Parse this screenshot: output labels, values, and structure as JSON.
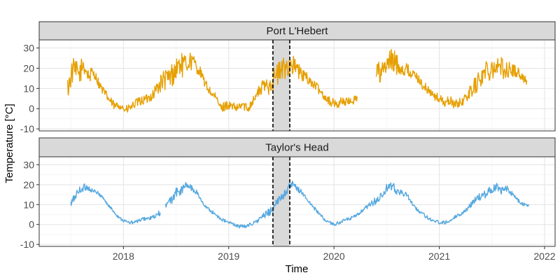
{
  "chart_data": {
    "type": "line",
    "facets": [
      {
        "name": "Port L'Hebert",
        "color": "#E69F00",
        "ylim": [
          -11,
          34
        ],
        "yticks": [
          -10,
          0,
          10,
          20,
          30
        ],
        "segments": [
          {
            "x": [
              2017.47,
              2017.52,
              2017.58,
              2017.62,
              2017.67,
              2017.72,
              2017.77,
              2017.83,
              2017.87,
              2017.92,
              2017.97,
              2018.02,
              2018.08,
              2018.13,
              2018.18,
              2018.23,
              2018.28,
              2018.33,
              2018.38,
              2018.43,
              2018.48,
              2018.53,
              2018.58,
              2018.63,
              2018.68,
              2018.73,
              2018.78,
              2018.83,
              2018.88,
              2018.93,
              2018.98,
              2019.03,
              2019.08,
              2019.13,
              2019.18,
              2019.23,
              2019.28,
              2019.33,
              2019.38,
              2019.43,
              2019.48,
              2019.53,
              2019.58,
              2019.63,
              2019.68,
              2019.73,
              2019.78,
              2019.83,
              2019.88,
              2019.93,
              2019.98,
              2020.03,
              2020.08,
              2020.13,
              2020.18,
              2020.22
            ],
            "y": [
              10,
              19,
              17,
              22,
              16,
              18,
              12,
              7,
              4,
              1,
              2,
              -1,
              1,
              3,
              4,
              5,
              7,
              11,
              14,
              15,
              18,
              22,
              21,
              24,
              22,
              18,
              12,
              8,
              5,
              0,
              2,
              1,
              0,
              2,
              0,
              4,
              8,
              11,
              12,
              15,
              18,
              20,
              22,
              21,
              17,
              16,
              13,
              11,
              8,
              5,
              3,
              2,
              4,
              3,
              4,
              6
            ]
          },
          {
            "x": [
              2020.4,
              2020.45,
              2020.5,
              2020.55,
              2020.6,
              2020.65,
              2020.7,
              2020.75,
              2020.8,
              2020.85,
              2020.9,
              2020.95,
              2021.0,
              2021.05,
              2021.1,
              2021.15,
              2021.2,
              2021.25,
              2021.3,
              2021.35,
              2021.4,
              2021.45,
              2021.5,
              2021.55,
              2021.6,
              2021.65,
              2021.7,
              2021.75,
              2021.8,
              2021.83
            ],
            "y": [
              19,
              17,
              21,
              24,
              22,
              20,
              19,
              17,
              15,
              11,
              9,
              6,
              5,
              3,
              4,
              2,
              3,
              5,
              9,
              12,
              16,
              19,
              21,
              21,
              20,
              19,
              19,
              18,
              15,
              14
            ]
          }
        ]
      },
      {
        "name": "Taylor's Head",
        "color": "#56A8DF",
        "ylim": [
          -11,
          34
        ],
        "yticks": [
          -10,
          0,
          10,
          20,
          30
        ],
        "segments": [
          {
            "x": [
              2017.5,
              2017.55,
              2017.6,
              2017.65,
              2017.7,
              2017.75,
              2017.8,
              2017.85,
              2017.9,
              2017.95,
              2018.0,
              2018.05,
              2018.1,
              2018.15,
              2018.2,
              2018.25,
              2018.3,
              2018.35
            ],
            "y": [
              10,
              15,
              18,
              19,
              17,
              16,
              14,
              10,
              7,
              4,
              2,
              1,
              1,
              2,
              3,
              3,
              4,
              6
            ]
          },
          {
            "x": [
              2018.4,
              2018.45,
              2018.5,
              2018.55,
              2018.6,
              2018.65,
              2018.7,
              2018.75,
              2018.8,
              2018.85,
              2018.9,
              2018.95,
              2019.0,
              2019.05,
              2019.1,
              2019.15,
              2019.2,
              2019.25,
              2019.3,
              2019.35,
              2019.4,
              2019.45,
              2019.5,
              2019.55,
              2019.6,
              2019.65,
              2019.7,
              2019.75,
              2019.8,
              2019.85,
              2019.9,
              2019.95,
              2020.0,
              2020.05,
              2020.1,
              2020.15,
              2020.2,
              2020.25,
              2020.3,
              2020.35,
              2020.4,
              2020.45,
              2020.5,
              2020.55,
              2020.6,
              2020.65,
              2020.7,
              2020.75,
              2020.8,
              2020.85,
              2020.9,
              2020.95,
              2021.0,
              2021.05,
              2021.1,
              2021.15,
              2021.2,
              2021.25,
              2021.3,
              2021.35,
              2021.4,
              2021.45,
              2021.5,
              2021.55,
              2021.6,
              2021.65,
              2021.7,
              2021.75,
              2021.8,
              2021.85
            ],
            "y": [
              9,
              12,
              16,
              17,
              20,
              18,
              16,
              11,
              8,
              6,
              4,
              2,
              1,
              0,
              -1,
              -1,
              0,
              1,
              3,
              5,
              7,
              10,
              14,
              17,
              20,
              18,
              16,
              12,
              9,
              6,
              3,
              1,
              0,
              1,
              2,
              3,
              4,
              6,
              8,
              10,
              12,
              14,
              18,
              19,
              17,
              16,
              14,
              10,
              7,
              5,
              3,
              2,
              1,
              1,
              2,
              4,
              5,
              7,
              10,
              13,
              14,
              16,
              18,
              19,
              17,
              18,
              15,
              12,
              10,
              10
            ]
          }
        ]
      }
    ],
    "x_range": [
      2017.2,
      2022.1
    ],
    "xticks": [
      {
        "value": 2018,
        "label": "2018"
      },
      {
        "value": 2019,
        "label": "2019"
      },
      {
        "value": 2020,
        "label": "2020"
      },
      {
        "value": 2021,
        "label": "2021"
      },
      {
        "value": 2022,
        "label": "2022"
      }
    ],
    "highlight_band": {
      "start": 2019.42,
      "end": 2019.58,
      "fill": "#d9d9d9",
      "line_style": "dashed"
    },
    "xlabel": "Time",
    "ylabel": "Temperature [°C]",
    "grid": true,
    "legend": "none"
  }
}
